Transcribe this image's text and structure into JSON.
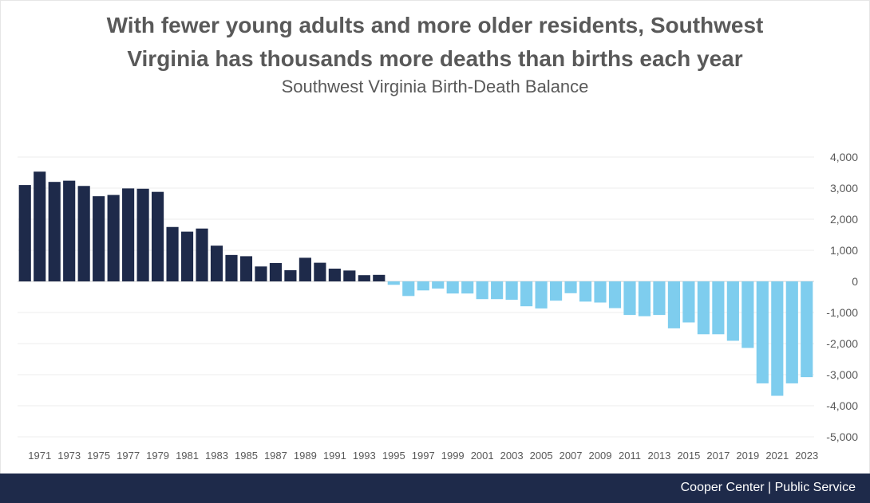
{
  "chart_data": {
    "type": "bar",
    "title": "With fewer young adults and more older residents, Southwest Virginia has thousands more deaths than births each year",
    "title_lines": [
      "With fewer young adults and more older residents, Southwest",
      "Virginia has thousands more deaths than births each year"
    ],
    "subtitle": "Southwest Virginia Birth-Death Balance",
    "xlabel": "",
    "ylabel": "",
    "ylim": [
      -5000,
      4000
    ],
    "yticks": [
      4000,
      3000,
      2000,
      1000,
      0,
      -1000,
      -2000,
      -3000,
      -4000,
      -5000
    ],
    "ytick_labels": [
      "4,000",
      "3,000",
      "2,000",
      "1,000",
      "0",
      "-1,000",
      "-2,000",
      "-3,000",
      "-4,000",
      "-5,000"
    ],
    "y_axis_position": "right",
    "grid": true,
    "categories": [
      1970,
      1971,
      1972,
      1973,
      1974,
      1975,
      1976,
      1977,
      1978,
      1979,
      1980,
      1981,
      1982,
      1983,
      1984,
      1985,
      1986,
      1987,
      1988,
      1989,
      1990,
      1991,
      1992,
      1993,
      1994,
      1995,
      1996,
      1997,
      1998,
      1999,
      2000,
      2001,
      2002,
      2003,
      2004,
      2005,
      2006,
      2007,
      2008,
      2009,
      2010,
      2011,
      2012,
      2013,
      2014,
      2015,
      2016,
      2017,
      2018,
      2019,
      2020,
      2021,
      2022,
      2023
    ],
    "xtick_labels": [
      "1971",
      "1973",
      "1975",
      "1977",
      "1979",
      "1981",
      "1983",
      "1985",
      "1987",
      "1989",
      "1991",
      "1993",
      "1995",
      "1997",
      "1999",
      "2001",
      "2003",
      "2005",
      "2007",
      "2009",
      "2011",
      "2013",
      "2015",
      "2017",
      "2019",
      "2021",
      "2023"
    ],
    "values": [
      3100,
      3530,
      3200,
      3240,
      3070,
      2740,
      2780,
      2990,
      2980,
      2880,
      1750,
      1600,
      1700,
      1150,
      850,
      810,
      480,
      590,
      360,
      760,
      600,
      410,
      350,
      200,
      210,
      -110,
      -470,
      -290,
      -230,
      -390,
      -390,
      -570,
      -570,
      -590,
      -800,
      -870,
      -620,
      -380,
      -650,
      -680,
      -860,
      -1080,
      -1120,
      -1080,
      -1510,
      -1320,
      -1700,
      -1700,
      -1910,
      -2140,
      -3280,
      -3680,
      -3280,
      -3080
    ],
    "colors": {
      "positive": "#1e2a4a",
      "negative": "#7ecdee",
      "grid": "#ececec",
      "tick_text": "#595959",
      "zero_line": "#d0d0d0"
    }
  },
  "footer": {
    "text": "Cooper Center | Public Service",
    "background": "#1e2a4a"
  }
}
